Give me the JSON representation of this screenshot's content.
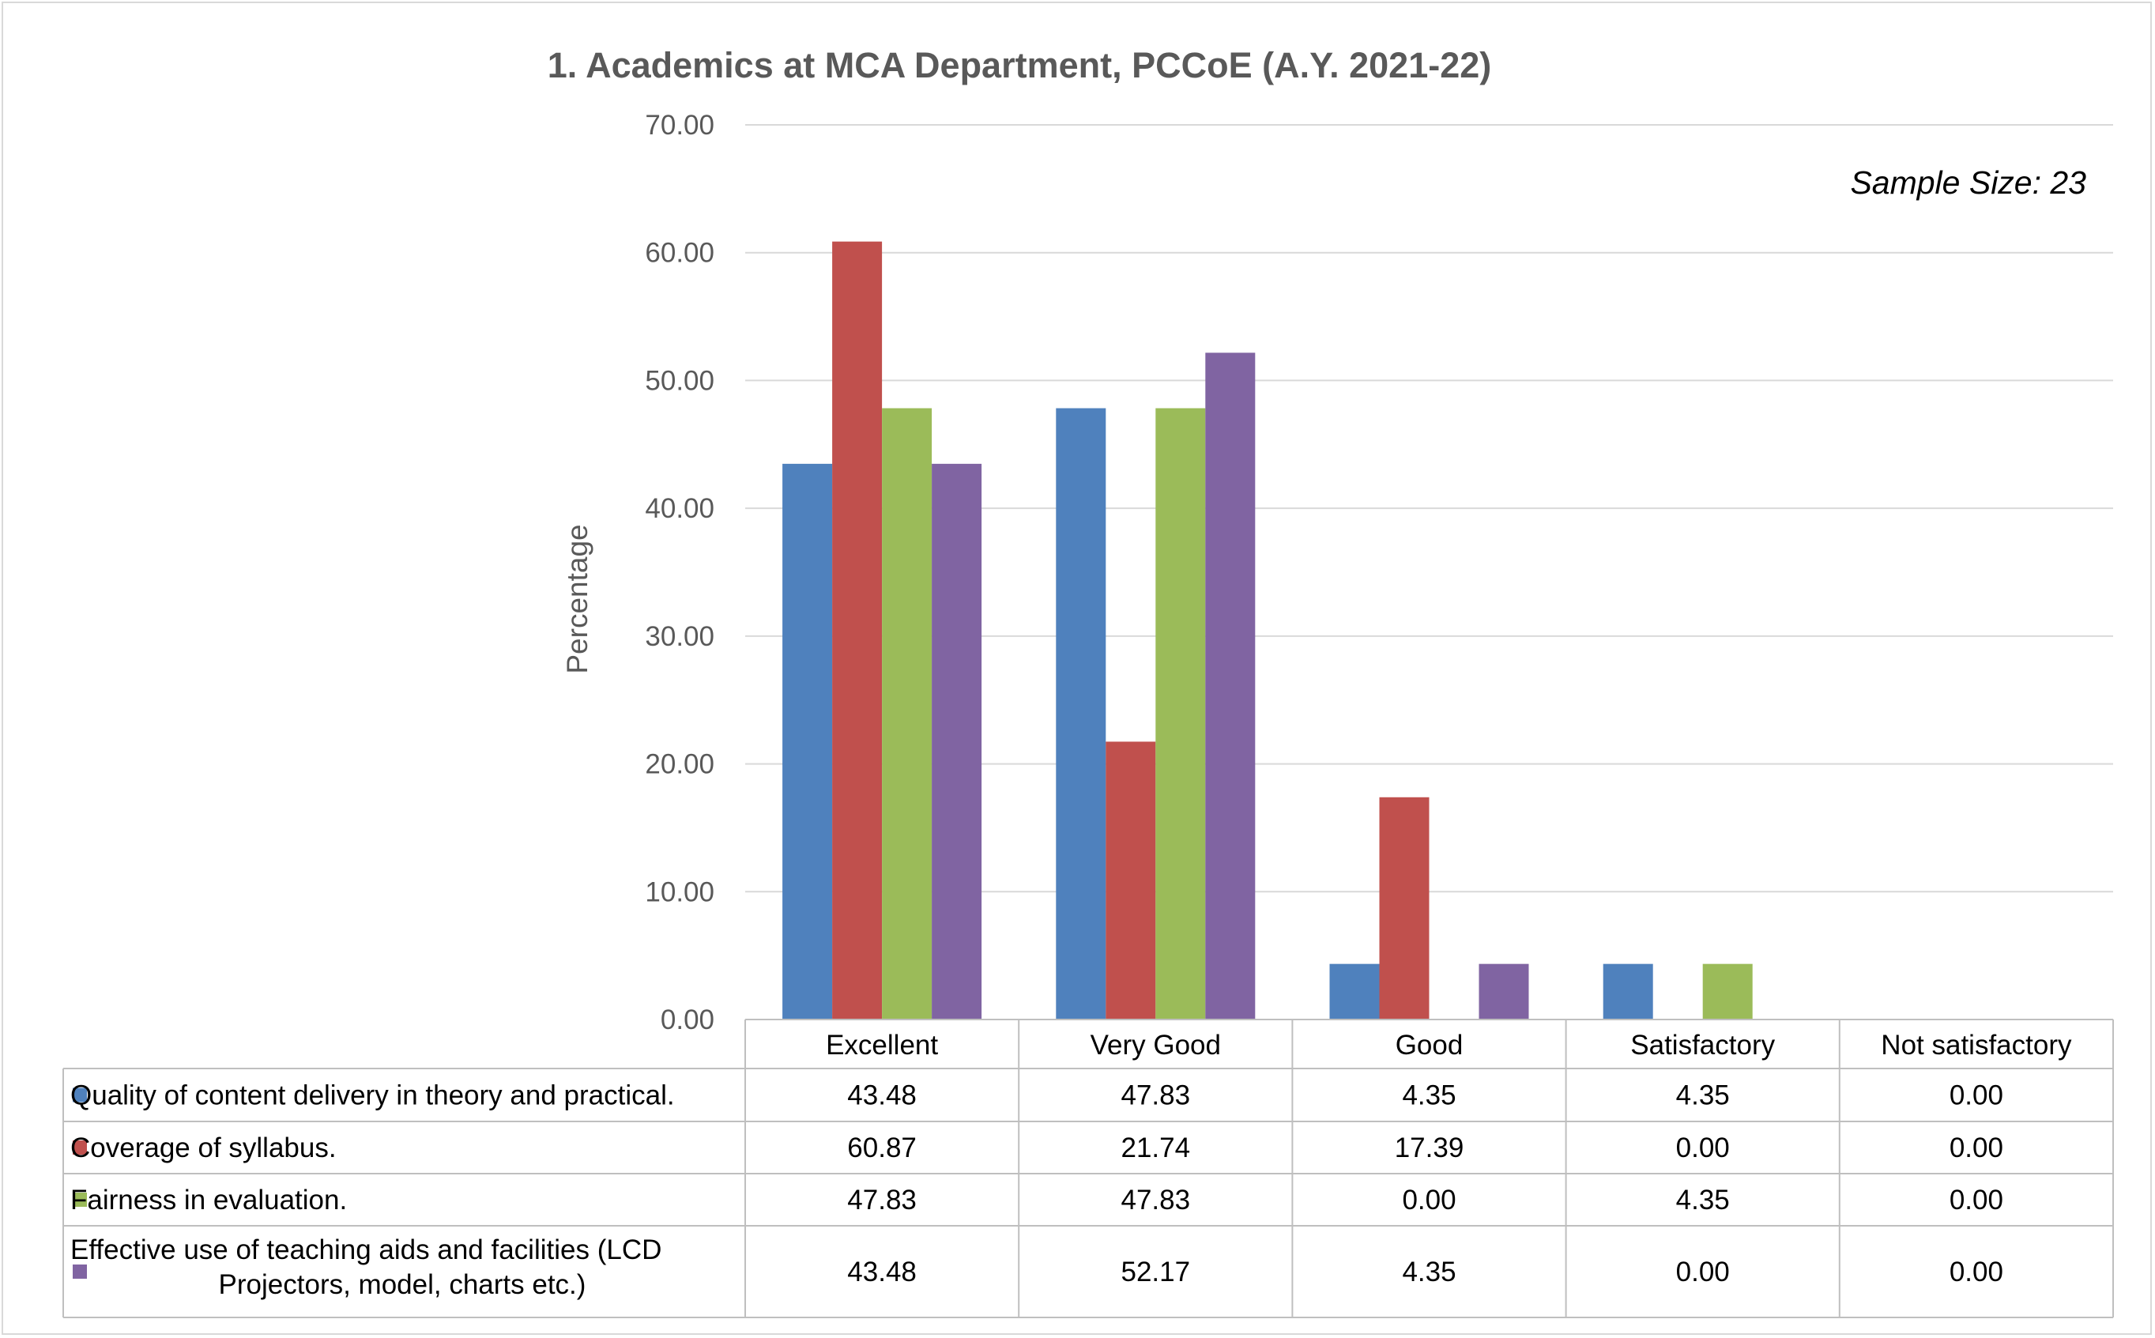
{
  "chart_data": {
    "type": "bar",
    "title": "1. Academics at MCA Department, PCCoE  (A.Y. 2021-22)",
    "annotation": "Sample Size: 23",
    "ylabel": "Percentage",
    "xlabel": "",
    "ylim": [
      0,
      70
    ],
    "yticks": [
      "0.00",
      "10.00",
      "20.00",
      "30.00",
      "40.00",
      "50.00",
      "60.00",
      "70.00"
    ],
    "grid": true,
    "legend": "data table below chart",
    "categories": [
      "Excellent",
      "Very Good",
      "Good",
      "Satisfactory",
      "Not satisfactory"
    ],
    "series": [
      {
        "name": "Quality of content delivery in theory and practical.",
        "color": "#4f81bd",
        "values": [
          43.48,
          47.83,
          4.35,
          4.35,
          0.0
        ],
        "labels": [
          "43.48",
          "47.83",
          "4.35",
          "4.35",
          "0.00"
        ]
      },
      {
        "name": "Coverage of syllabus.",
        "color": "#c0504d",
        "values": [
          60.87,
          21.74,
          17.39,
          0.0,
          0.0
        ],
        "labels": [
          "60.87",
          "21.74",
          "17.39",
          "0.00",
          "0.00"
        ]
      },
      {
        "name": "Fairness in evaluation.",
        "color": "#9bbb59",
        "values": [
          47.83,
          47.83,
          0.0,
          4.35,
          0.0
        ],
        "labels": [
          "47.83",
          "47.83",
          "0.00",
          "4.35",
          "0.00"
        ]
      },
      {
        "name": "Effective use of teaching aids and facilities (LCD Projectors, model, charts etc.)",
        "name_lines": [
          "Effective use of teaching aids and facilities (LCD",
          "Projectors, model, charts etc.)"
        ],
        "color": "#8064a2",
        "values": [
          43.48,
          52.17,
          4.35,
          0.0,
          0.0
        ],
        "labels": [
          "43.48",
          "52.17",
          "4.35",
          "0.00",
          "0.00"
        ]
      }
    ]
  }
}
